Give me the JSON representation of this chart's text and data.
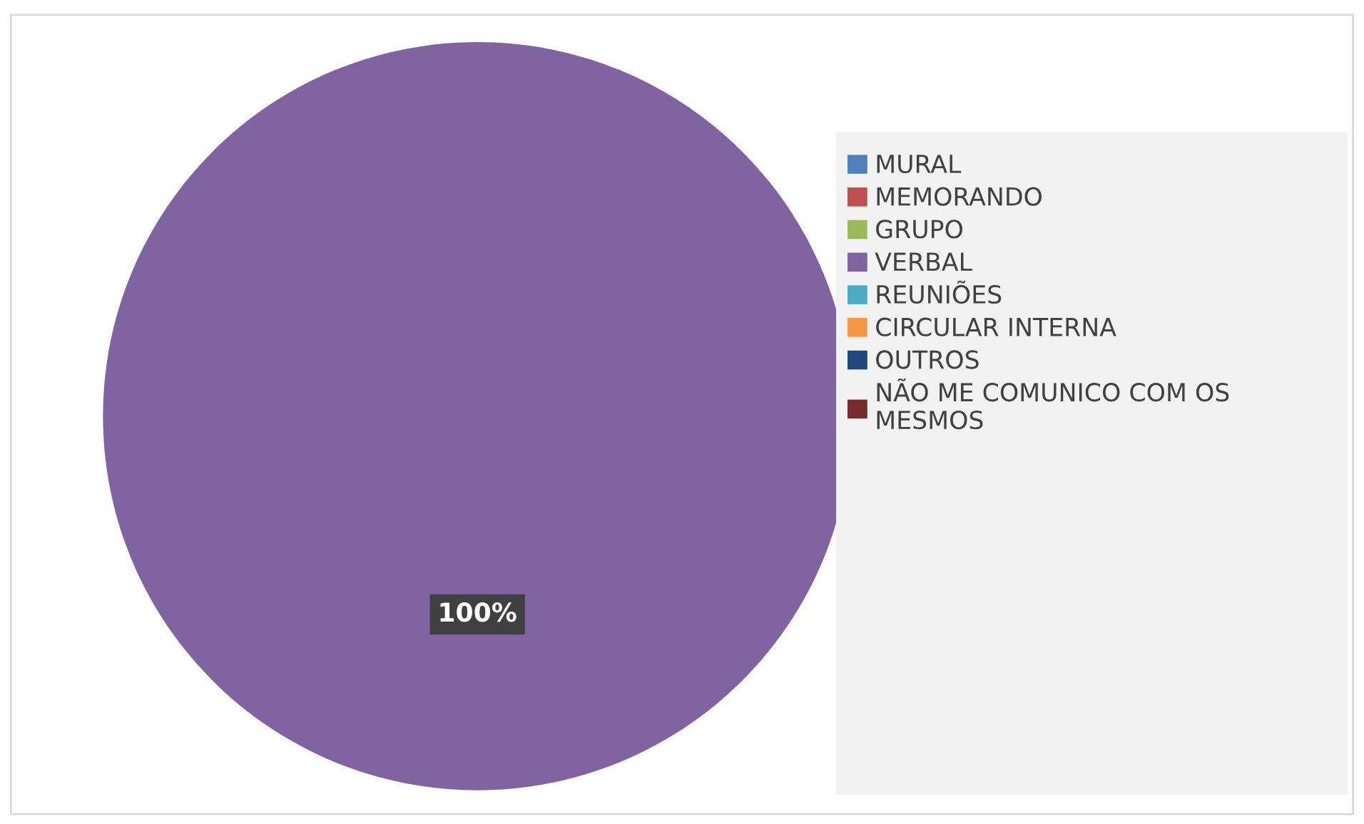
{
  "chart_data": {
    "type": "pie",
    "categories": [
      "MURAL",
      "MEMORANDO",
      "GRUPO",
      "VERBAL",
      "REUNIÕES",
      "CIRCULAR INTERNA",
      "OUTROS",
      "NÃO ME COMUNICO COM OS\nMESMOS"
    ],
    "values": [
      0,
      0,
      0,
      100,
      0,
      0,
      0,
      0
    ],
    "colors": [
      "#4f81bd",
      "#c0504d",
      "#9bbb59",
      "#8064a2",
      "#4bacc6",
      "#f79646",
      "#1f497d",
      "#772c2a"
    ],
    "value_labels": [
      null,
      null,
      null,
      "100%",
      null,
      null,
      null,
      null
    ],
    "legend": "right"
  }
}
